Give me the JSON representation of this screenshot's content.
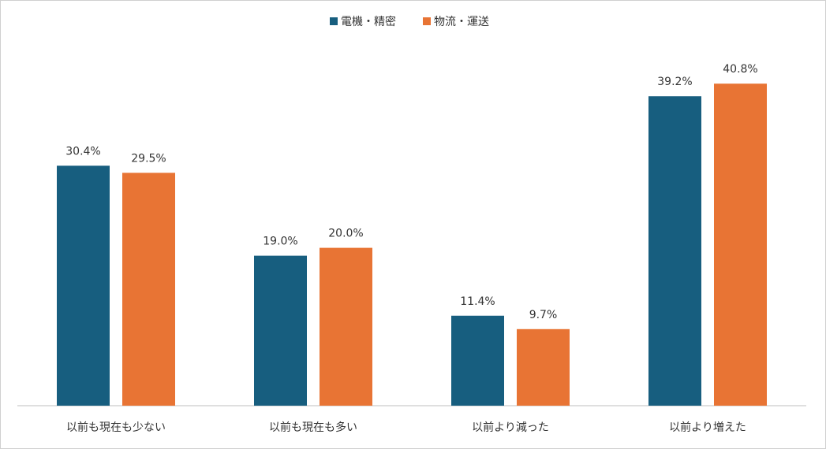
{
  "chart_data": {
    "type": "bar",
    "categories": [
      "以前も現在も少ない",
      "以前も現在も多い",
      "以前より減った",
      "以前より増えた"
    ],
    "series": [
      {
        "name": "電機・精密",
        "color": "#175e7f",
        "values": [
          30.4,
          19.0,
          11.4,
          39.2
        ],
        "value_labels": [
          "30.4%",
          "19.0%",
          "11.4%",
          "39.2%"
        ]
      },
      {
        "name": "物流・運送",
        "color": "#e87434",
        "values": [
          29.5,
          20.0,
          9.7,
          40.8
        ],
        "value_labels": [
          "29.5%",
          "20.0%",
          "9.7%",
          "40.8%"
        ]
      }
    ],
    "ylim": [
      0,
      45
    ],
    "legend": "top"
  }
}
